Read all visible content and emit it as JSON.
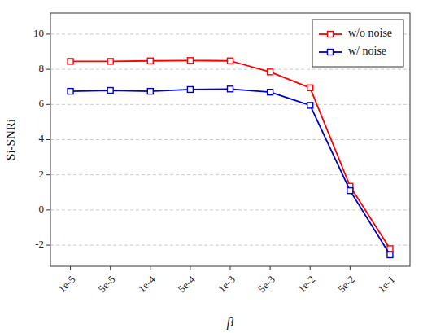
{
  "chart_data": {
    "type": "line",
    "categories": [
      "1e-5",
      "5e-5",
      "1e-4",
      "5e-4",
      "1e-3",
      "5e-3",
      "1e-2",
      "5e-2",
      "1e-1"
    ],
    "series": [
      {
        "name": "w/o noise",
        "color": "#ff0000",
        "values": [
          8.45,
          8.45,
          8.48,
          8.5,
          8.48,
          7.85,
          6.95,
          1.35,
          -2.2
        ]
      },
      {
        "name": "w/ noise",
        "color": "#0000cc",
        "values": [
          6.75,
          6.8,
          6.75,
          6.85,
          6.88,
          6.7,
          5.95,
          1.1,
          -2.55
        ]
      }
    ],
    "xlabel": "β",
    "ylabel": "Si-SNRi",
    "ylim": [
      -3.2,
      11.2
    ],
    "yticks": [
      -2,
      0,
      2,
      4,
      6,
      8,
      10
    ],
    "grid": true,
    "legend": "upper right",
    "marker": "square"
  }
}
